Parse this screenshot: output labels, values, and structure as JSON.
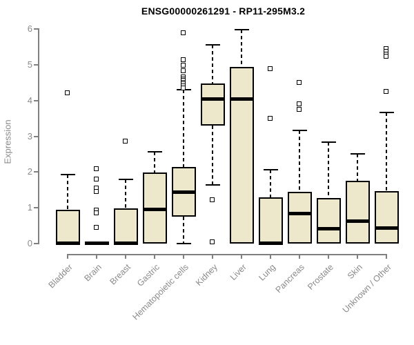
{
  "chart_data": {
    "type": "boxplot",
    "title": "ENSG00000261291 - RP11-295M3.2",
    "xlabel": "",
    "ylabel": "Expression",
    "ylim": [
      0,
      6
    ],
    "yticks": [
      0,
      1,
      2,
      3,
      4,
      5,
      6
    ],
    "grid": false,
    "legend": "none",
    "categories": [
      "Bladder",
      "Brain",
      "Breast",
      "Gastric",
      "Hematopoietic cells",
      "Kidney",
      "Liver",
      "Lung",
      "Pancreas",
      "Prostate",
      "Skin",
      "Unknown / Other"
    ],
    "series": [
      {
        "name": "Bladder",
        "whisker_low": 0,
        "q1": 0,
        "median": 0.02,
        "q3": 0.95,
        "whisker_high": 1.93,
        "outliers": [
          4.21
        ]
      },
      {
        "name": "Brain",
        "whisker_low": 0,
        "q1": 0,
        "median": 0.02,
        "q3": 0.04,
        "whisker_high": 0.04,
        "outliers": [
          2.08,
          1.79,
          1.54,
          1.45,
          0.93,
          0.85,
          0.44
        ]
      },
      {
        "name": "Breast",
        "whisker_low": 0,
        "q1": 0,
        "median": 0.02,
        "q3": 0.98,
        "whisker_high": 1.79,
        "outliers": [
          2.86
        ]
      },
      {
        "name": "Gastric",
        "whisker_low": 0,
        "q1": 0,
        "median": 0.96,
        "q3": 1.99,
        "whisker_high": 2.57,
        "outliers": []
      },
      {
        "name": "Hematopoietic cells",
        "whisker_low": 0,
        "q1": 0.75,
        "median": 1.45,
        "q3": 2.14,
        "whisker_high": 4.3,
        "outliers": [
          5.89,
          5.13,
          4.98,
          4.82,
          4.65,
          4.6,
          4.55,
          4.5,
          4.45,
          4.4,
          4.35
        ]
      },
      {
        "name": "Kidney",
        "whisker_low": 1.64,
        "q1": 3.3,
        "median": 4.05,
        "q3": 4.48,
        "whisker_high": 5.56,
        "outliers": [
          1.22,
          0.03
        ]
      },
      {
        "name": "Liver",
        "whisker_low": 0,
        "q1": 0,
        "median": 4.05,
        "q3": 4.94,
        "whisker_high": 5.98,
        "outliers": []
      },
      {
        "name": "Lung",
        "whisker_low": 0,
        "q1": 0,
        "median": 0.02,
        "q3": 1.29,
        "whisker_high": 2.06,
        "outliers": [
          4.88,
          3.49
        ]
      },
      {
        "name": "Pancreas",
        "whisker_low": 0,
        "q1": 0,
        "median": 0.85,
        "q3": 1.45,
        "whisker_high": 3.16,
        "outliers": [
          4.5,
          3.9,
          3.74
        ]
      },
      {
        "name": "Prostate",
        "whisker_low": 0,
        "q1": 0,
        "median": 0.42,
        "q3": 1.27,
        "whisker_high": 2.84,
        "outliers": []
      },
      {
        "name": "Skin",
        "whisker_low": 0,
        "q1": 0,
        "median": 0.63,
        "q3": 1.76,
        "whisker_high": 2.51,
        "outliers": []
      },
      {
        "name": "Unknown / Other",
        "whisker_low": 0,
        "q1": 0,
        "median": 0.45,
        "q3": 1.47,
        "whisker_high": 3.67,
        "outliers": [
          5.45,
          5.37,
          5.29,
          5.22,
          4.24
        ]
      }
    ],
    "colors": {
      "box_fill": "#EDE7CB",
      "box_border": "#000000",
      "median": "#000000",
      "axis": "#7f7f7f",
      "axis_text": "#8a8a8a",
      "title_text": "#000000",
      "background": "#ffffff"
    }
  }
}
